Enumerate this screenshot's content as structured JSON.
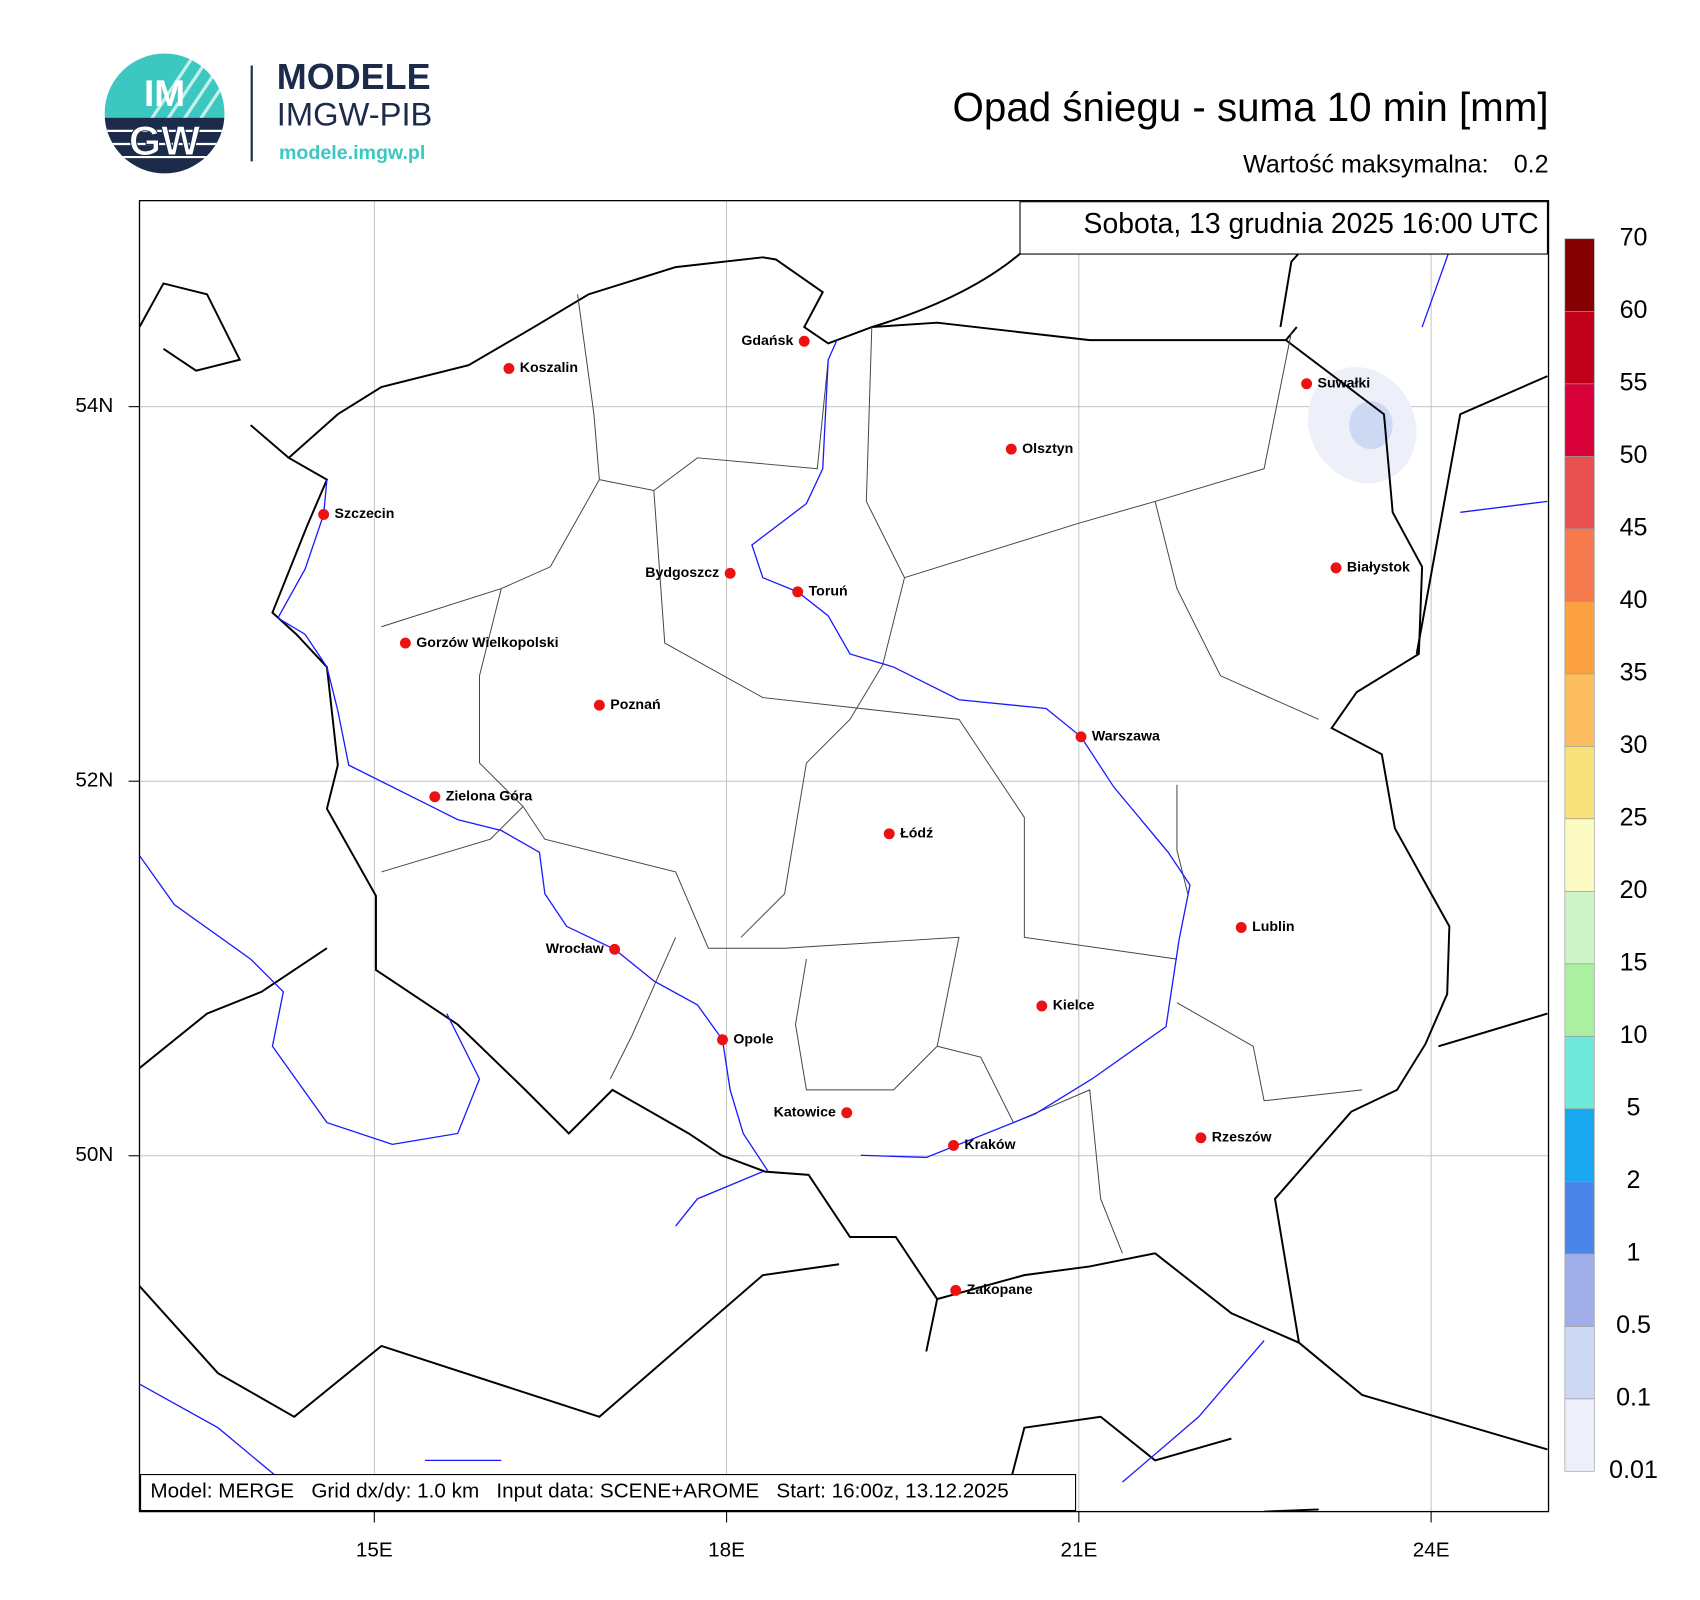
{
  "header": {
    "badge_top": "IM",
    "badge_bottom": "GW",
    "name": "MODELE",
    "org": "IMGW-PIB",
    "url": "modele.imgw.pl"
  },
  "map": {
    "title": "Opad śniegu - suma 10 min [mm]",
    "max_label": "Wartość maksymalna:",
    "max_value": 0.2,
    "valid_time": "Sobota, 13 grudnia 2025 16:00 UTC",
    "footer": "Model: MERGE   Grid dx/dy: 1.0 km   Input data: SCENE+AROME   Start: 16:00z, 13.12.2025",
    "xlim": [
      13,
      25
    ],
    "ylim": [
      48.1,
      55.1
    ],
    "xticks": [
      {
        "value": 15,
        "label": "15E"
      },
      {
        "value": 18,
        "label": "18E"
      },
      {
        "value": 21,
        "label": "21E"
      },
      {
        "value": 24,
        "label": "24E"
      }
    ],
    "yticks": [
      {
        "value": 50,
        "label": "50N"
      },
      {
        "value": 52,
        "label": "52N"
      },
      {
        "value": 54,
        "label": "54N"
      }
    ],
    "cities": [
      "Gdańsk",
      "Koszalin",
      "Suwałki",
      "Olsztyn",
      "Szczecin",
      "Białystok",
      "Bydgoszcz",
      "Toruń",
      "Gorzów Wielkopolski",
      "Poznań",
      "Warszawa",
      "Zielona Góra",
      "Łódź",
      "Lublin",
      "Wrocław",
      "Kielce",
      "Opole",
      "Katowice",
      "Kraków",
      "Rzeszów",
      "Zakopane"
    ]
  },
  "colorbar": {
    "levels": [
      0.01,
      0.1,
      0.5,
      1,
      2,
      5,
      10,
      15,
      20,
      25,
      30,
      35,
      40,
      45,
      50,
      55,
      60,
      70
    ],
    "colors": [
      "#edf0f8",
      "#cdd9f2",
      "#a0aeea",
      "#4a86ea",
      "#17a8f0",
      "#6ee8d8",
      "#aaf0a0",
      "#cdf5c8",
      "#fdfbc4",
      "#f8e07a",
      "#fbbd5e",
      "#fba142",
      "#f57a4e",
      "#e95050",
      "#d80038",
      "#c00018",
      "#840000"
    ]
  }
}
